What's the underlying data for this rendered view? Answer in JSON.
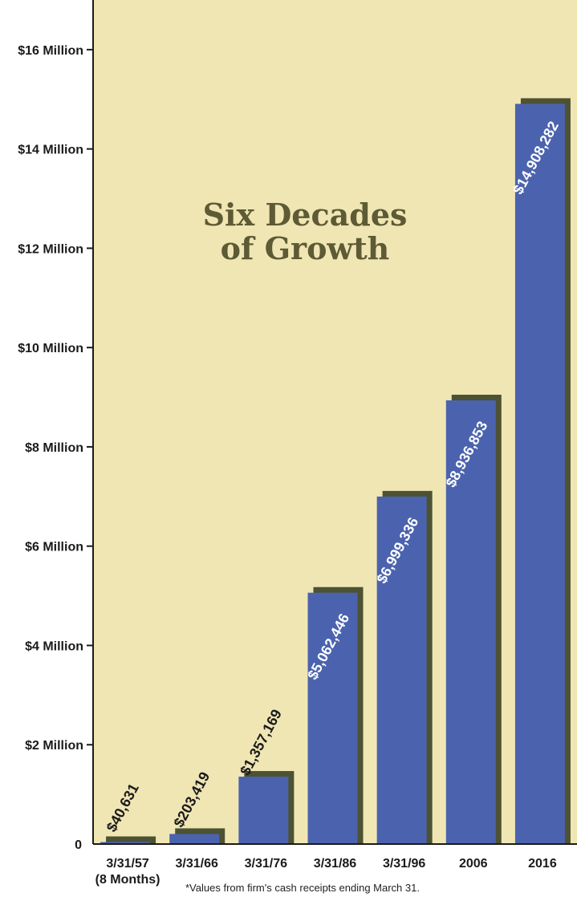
{
  "chart_data": {
    "type": "bar",
    "title": "Six Decades of Growth",
    "title_lines": [
      "Six Decades",
      "of Growth"
    ],
    "categories": [
      "3/31/57",
      "3/31/66",
      "3/31/76",
      "3/31/86",
      "3/31/96",
      "2006",
      "2016"
    ],
    "category_sublabels": [
      "(8 Months)",
      "",
      "",
      "",
      "",
      "",
      ""
    ],
    "values": [
      40631,
      203419,
      1357169,
      5062446,
      6999336,
      8936853,
      14908282
    ],
    "value_labels": [
      "$40,631",
      "$203,419",
      "$1,357,169",
      "$5,062,446",
      "$6,999,336",
      "$8,936,853",
      "$14,908,282"
    ],
    "yticks": [
      0,
      2000000,
      4000000,
      6000000,
      8000000,
      10000000,
      12000000,
      14000000,
      16000000
    ],
    "ytick_labels": [
      "0",
      "$2 Million",
      "$4 Million",
      "$6 Million",
      "$8 Million",
      "$10 Million",
      "$12 Million",
      "$14 Million",
      "$16 Million"
    ],
    "ylim": [
      0,
      17000000
    ],
    "grid": false,
    "footnote": "*Values from firm's cash receipts ending March 31.",
    "colors": {
      "background": "#f0e6b4",
      "bar": "#4b63ae",
      "bar_shadow": "#4c5232",
      "title": "#5d5a35",
      "label_inside": "#ffffff",
      "label_outside": "#1a1a1a"
    }
  }
}
